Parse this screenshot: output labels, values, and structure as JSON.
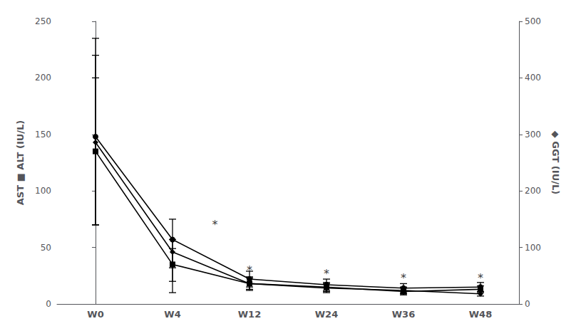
{
  "chart_data": {
    "type": "line",
    "categories": [
      "W0",
      "W4",
      "W12",
      "W24",
      "W36",
      "W48"
    ],
    "series": [
      {
        "name": "AST",
        "color": "#000000",
        "marker": "square",
        "axis": "y",
        "values": [
          135,
          35,
          18,
          15,
          11,
          13
        ],
        "err_low": [
          65,
          15,
          5,
          4,
          3,
          3
        ],
        "err_high": [
          65,
          22,
          5,
          4,
          3,
          3
        ]
      },
      {
        "name": "ALT",
        "color": "#000000",
        "marker": "circle",
        "axis": "y",
        "values": [
          148,
          57,
          22,
          17,
          14,
          15
        ],
        "err_low": [
          78,
          25,
          7,
          5,
          4,
          4
        ],
        "err_high": [
          72,
          18,
          7,
          5,
          4,
          4
        ]
      },
      {
        "name": "GGT",
        "color": "#000000",
        "marker": "diamond",
        "axis": "y",
        "values": [
          143,
          46,
          18,
          14,
          12,
          9
        ],
        "err_low": [
          73,
          36,
          6,
          4,
          3,
          2
        ],
        "err_high": [
          92,
          3,
          6,
          4,
          3,
          2
        ]
      }
    ],
    "ylabel": "AST ■ ALT (IU/L)",
    "y2label": "◆ GGT (IU/L)",
    "ylim": [
      0,
      250
    ],
    "yticks": [
      0,
      50,
      100,
      150,
      200,
      250
    ],
    "y2lim": [
      0,
      500
    ],
    "y2ticks": [
      0,
      100,
      200,
      300,
      400,
      500
    ],
    "annotations": [
      {
        "text": "*",
        "x": 1.55,
        "y": 70
      },
      {
        "text": "*",
        "x": 2.0,
        "y": 30
      },
      {
        "text": "*",
        "x": 3.0,
        "y": 27
      },
      {
        "text": "*",
        "x": 4.0,
        "y": 23
      },
      {
        "text": "*",
        "x": 5.0,
        "y": 23
      }
    ],
    "grid": false
  }
}
